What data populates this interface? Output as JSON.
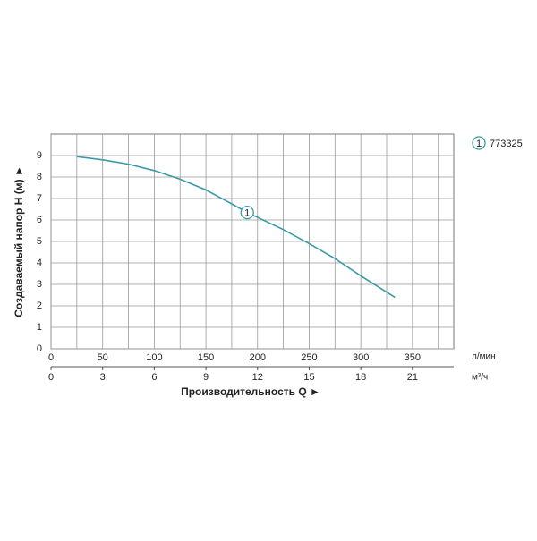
{
  "chart_data": {
    "type": "line",
    "ylabel": "Создаваемый напор H (м) ►",
    "xlabel": "Производительность Q ►",
    "x_unit": "л/мин",
    "x2_unit": "м³/ч",
    "xlim": [
      0,
      390
    ],
    "xticks": [
      0,
      50,
      100,
      150,
      200,
      250,
      300,
      350
    ],
    "xminorticks": [
      25,
      75,
      125,
      175,
      225,
      275,
      325,
      375
    ],
    "x2lim": [
      0,
      23.4
    ],
    "x2ticks": [
      0,
      3,
      6,
      9,
      12,
      15,
      18,
      21
    ],
    "ylim": [
      0,
      10
    ],
    "yticks": [
      0,
      1,
      2,
      3,
      4,
      5,
      6,
      7,
      8,
      9
    ],
    "grid": true,
    "series": [
      {
        "name": "773325",
        "label": "1",
        "color": "#3a9aa8",
        "x": [
          25,
          50,
          75,
          100,
          125,
          150,
          175,
          190,
          225,
          250,
          275,
          300,
          333
        ],
        "values": [
          8.95,
          8.8,
          8.6,
          8.3,
          7.9,
          7.4,
          6.75,
          6.35,
          5.55,
          4.9,
          4.2,
          3.4,
          2.4
        ]
      }
    ]
  }
}
